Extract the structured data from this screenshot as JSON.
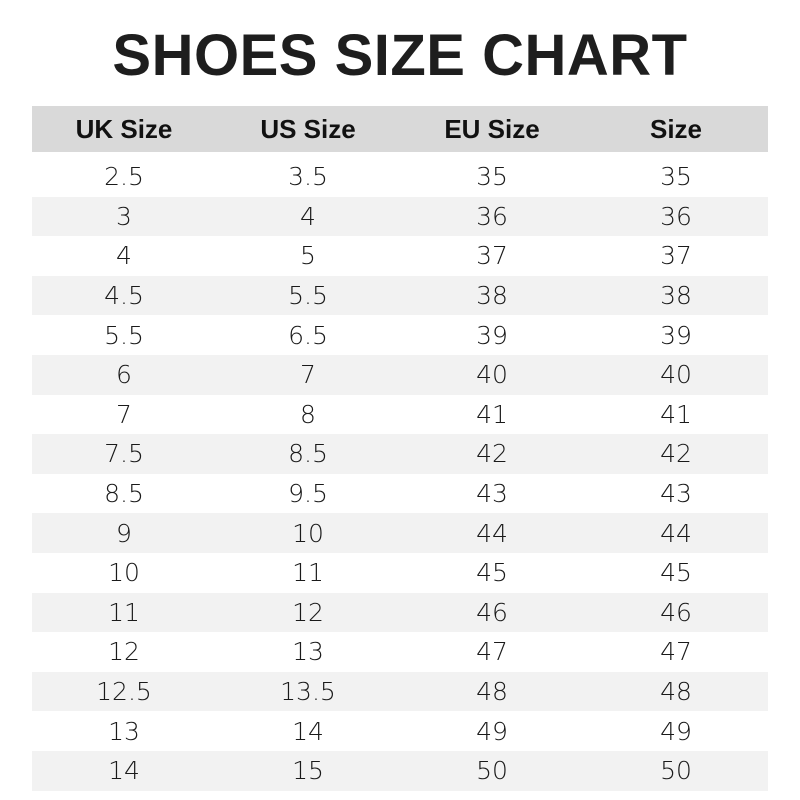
{
  "title": "SHOES SIZE CHART",
  "headers": [
    "UK Size",
    "US Size",
    "EU Size",
    "Size"
  ],
  "rows": [
    [
      "2.5",
      "3.5",
      "35",
      "35"
    ],
    [
      "3",
      "4",
      "36",
      "36"
    ],
    [
      "4",
      "5",
      "37",
      "37"
    ],
    [
      "4.5",
      "5.5",
      "38",
      "38"
    ],
    [
      "5.5",
      "6.5",
      "39",
      "39"
    ],
    [
      "6",
      "7",
      "40",
      "40"
    ],
    [
      "7",
      "8",
      "41",
      "41"
    ],
    [
      "7.5",
      "8.5",
      "42",
      "42"
    ],
    [
      "8.5",
      "9.5",
      "43",
      "43"
    ],
    [
      "9",
      "10",
      "44",
      "44"
    ],
    [
      "10",
      "11",
      "45",
      "45"
    ],
    [
      "11",
      "12",
      "46",
      "46"
    ],
    [
      "12",
      "13",
      "47",
      "47"
    ],
    [
      "12.5",
      "13.5",
      "48",
      "48"
    ],
    [
      "13",
      "14",
      "49",
      "49"
    ],
    [
      "14",
      "15",
      "50",
      "50"
    ]
  ],
  "colors": {
    "header_bg": "#d9d9d9",
    "stripe_bg": "#f2f2f2",
    "title": "#1e1e1e"
  }
}
